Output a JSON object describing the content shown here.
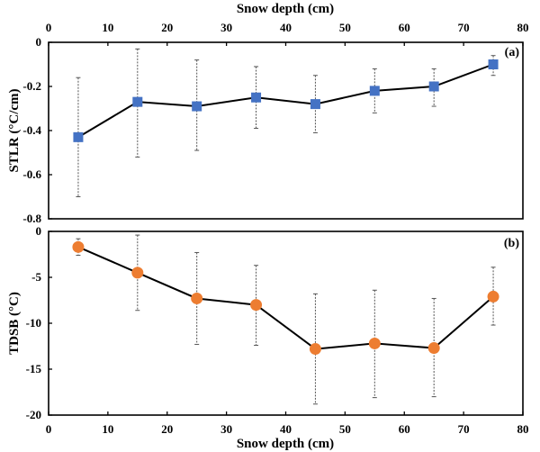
{
  "chart_data": [
    {
      "type": "line",
      "panel_label": "(a)",
      "title": "",
      "xlabel": "Snow depth (cm)",
      "ylabel": "STLR (°C/cm)",
      "xlabel_position": "top",
      "xlim": [
        0,
        80
      ],
      "ylim": [
        -0.8,
        0
      ],
      "xticks": [
        0,
        10,
        20,
        30,
        40,
        50,
        60,
        70,
        80
      ],
      "yticks": [
        0,
        -0.2,
        -0.4,
        -0.6,
        -0.8
      ],
      "ytick_labels": [
        "0",
        "-0.2",
        "-0.4",
        "-0.6",
        "-0.8"
      ],
      "grid": false,
      "marker": "square",
      "marker_color": "#4472C4",
      "line_color": "#000000",
      "x": [
        5,
        15,
        25,
        35,
        45,
        55,
        65,
        75
      ],
      "series": [
        {
          "name": "STLR",
          "values": [
            -0.43,
            -0.27,
            -0.29,
            -0.25,
            -0.28,
            -0.22,
            -0.2,
            -0.1
          ],
          "error_upper": [
            -0.16,
            -0.03,
            -0.08,
            -0.11,
            -0.15,
            -0.12,
            -0.12,
            -0.06
          ],
          "error_lower": [
            -0.7,
            -0.52,
            -0.49,
            -0.39,
            -0.41,
            -0.32,
            -0.29,
            -0.15
          ]
        }
      ]
    },
    {
      "type": "line",
      "panel_label": "(b)",
      "title": "",
      "xlabel": "Snow depth (cm)",
      "ylabel": "TDSB (°C)",
      "xlabel_position": "bottom",
      "xlim": [
        0,
        80
      ],
      "ylim": [
        -20,
        0
      ],
      "xticks": [
        0,
        10,
        20,
        30,
        40,
        50,
        60,
        70,
        80
      ],
      "yticks": [
        0,
        -5,
        -10,
        -15,
        -20
      ],
      "ytick_labels": [
        "0",
        "-5",
        "-10",
        "-15",
        "-20"
      ],
      "grid": false,
      "marker": "circle",
      "marker_color": "#ED7D31",
      "line_color": "#000000",
      "x": [
        5,
        15,
        25,
        35,
        45,
        55,
        65,
        75
      ],
      "series": [
        {
          "name": "TDSB",
          "values": [
            -1.7,
            -4.5,
            -7.3,
            -8.0,
            -12.8,
            -12.2,
            -12.7,
            -7.1
          ],
          "error_upper": [
            -0.8,
            -0.4,
            -2.3,
            -3.7,
            -6.8,
            -6.4,
            -7.3,
            -3.9
          ],
          "error_lower": [
            -2.6,
            -8.6,
            -12.3,
            -12.4,
            -18.8,
            -18.1,
            -18.0,
            -10.2
          ]
        }
      ]
    }
  ]
}
